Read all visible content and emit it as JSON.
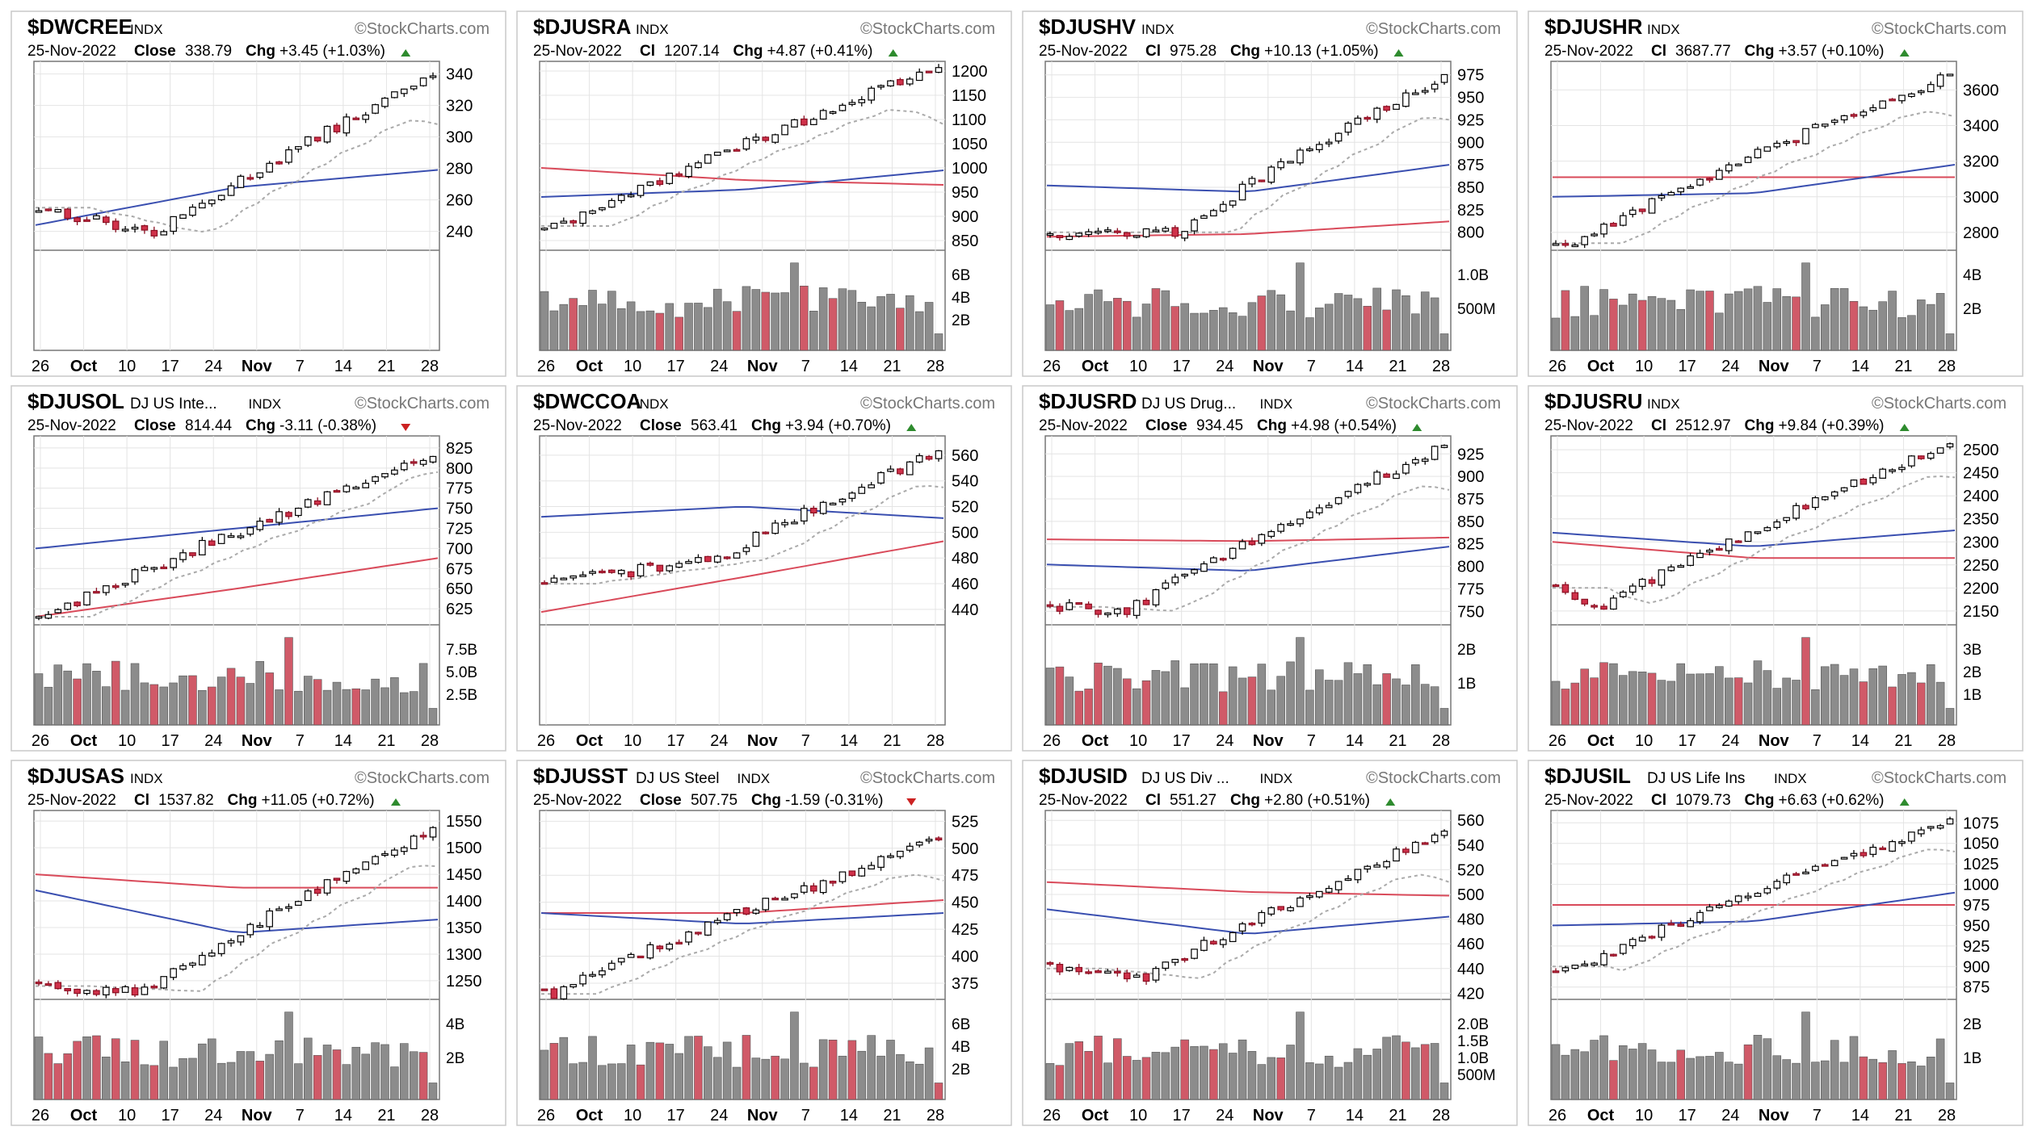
{
  "watermark": "©StockCharts.com",
  "colors": {
    "up_fill": "#ffffff",
    "up_stroke": "#000000",
    "down_fill": "#d0314a",
    "down_stroke": "#8a0f22",
    "ma_slow": "#3a4fb0",
    "ma_long": "#d94a5a",
    "ma_fast": "#aaaaaa",
    "vol_up": "#8c8c8c",
    "vol_down": "#d05a68",
    "grid": "#e4e4e4",
    "tri_up": "#2e8b2e",
    "tri_down": "#cc2222"
  },
  "charts": [
    {
      "symbol": "$DWCREE",
      "name": "",
      "type": "INDX",
      "date": "25-Nov-2022",
      "close_label": "Close",
      "close": "338.79",
      "chg_label": "Chg",
      "chg": "+3.45",
      "chg_pct": "(+1.03%)",
      "direction": "up",
      "chart_data": {
        "type": "candlestick",
        "x_ticks": [
          "26",
          "Oct",
          "10",
          "17",
          "24",
          "Nov",
          "7",
          "14",
          "21",
          "28"
        ],
        "price_ticks": [
          340,
          320,
          300,
          280,
          260,
          240
        ],
        "price_lim": [
          228,
          348
        ],
        "start": 255,
        "end": 338.79,
        "low_point": 238,
        "low_pos": 0.3,
        "ma_slow": [
          244,
          268,
          279
        ],
        "ma_long": null,
        "ma_fast_end": 308,
        "volume_ticks": [],
        "volume_max": 1,
        "volume_visible": false
      }
    },
    {
      "symbol": "$DJUSRA",
      "name": "",
      "type": "INDX",
      "date": "25-Nov-2022",
      "close_label": "Cl",
      "close": "1207.14",
      "chg_label": "Chg",
      "chg": "+4.87",
      "chg_pct": "(+0.41%)",
      "direction": "up",
      "chart_data": {
        "type": "candlestick",
        "x_ticks": [
          "26",
          "Oct",
          "10",
          "17",
          "24",
          "Nov",
          "7",
          "14",
          "21",
          "28"
        ],
        "price_ticks": [
          1200,
          1150,
          1100,
          1050,
          1000,
          950,
          900,
          850
        ],
        "price_lim": [
          830,
          1220
        ],
        "start": 880,
        "end": 1207.14,
        "low_point": 880,
        "low_pos": 0.05,
        "ma_slow": [
          940,
          955,
          995
        ],
        "ma_long": [
          1000,
          975,
          965
        ],
        "ma_fast_end": 1090,
        "volume_ticks": [
          "6B",
          "4B",
          "2B"
        ],
        "volume_max": 7.2,
        "volume_visible": true
      }
    },
    {
      "symbol": "$DJUSHV",
      "name": "",
      "type": "INDX",
      "date": "25-Nov-2022",
      "close_label": "Cl",
      "close": "975.28",
      "chg_label": "Chg",
      "chg": "+10.13",
      "chg_pct": "(+1.05%)",
      "direction": "up",
      "chart_data": {
        "type": "candlestick",
        "x_ticks": [
          "26",
          "Oct",
          "10",
          "17",
          "24",
          "Nov",
          "7",
          "14",
          "21",
          "28"
        ],
        "price_ticks": [
          975,
          950,
          925,
          900,
          875,
          850,
          825,
          800
        ],
        "price_lim": [
          780,
          990
        ],
        "start": 800,
        "end": 975.28,
        "low_point": 800,
        "low_pos": 0.33,
        "ma_slow": [
          852,
          845,
          875
        ],
        "ma_long": [
          795,
          798,
          812
        ],
        "ma_fast_end": 925,
        "volume_ticks": [
          "1.0B",
          "500M"
        ],
        "volume_max": 1.4,
        "volume_visible": true
      }
    },
    {
      "symbol": "$DJUSHR",
      "name": "",
      "type": "INDX",
      "date": "25-Nov-2022",
      "close_label": "Cl",
      "close": "3687.77",
      "chg_label": "Chg",
      "chg": "+3.57",
      "chg_pct": "(+0.10%)",
      "direction": "up",
      "chart_data": {
        "type": "candlestick",
        "x_ticks": [
          "26",
          "Oct",
          "10",
          "17",
          "24",
          "Nov",
          "7",
          "14",
          "21",
          "28"
        ],
        "price_ticks": [
          3600,
          3400,
          3200,
          3000,
          2800
        ],
        "price_lim": [
          2700,
          3760
        ],
        "start": 2740,
        "end": 3687.77,
        "low_point": 2740,
        "low_pos": 0.05,
        "ma_slow": [
          3000,
          3020,
          3180
        ],
        "ma_long": [
          3110,
          3110,
          3110
        ],
        "ma_fast_end": 3450,
        "volume_ticks": [
          "4B",
          "2B"
        ],
        "volume_max": 5.6,
        "volume_visible": true
      }
    },
    {
      "symbol": "$DJUSOL",
      "name": "DJ US Inte...",
      "type": "INDX",
      "date": "25-Nov-2022",
      "close_label": "Close",
      "close": "814.44",
      "chg_label": "Chg",
      "chg": "-3.11",
      "chg_pct": "(-0.38%)",
      "direction": "down",
      "chart_data": {
        "type": "candlestick",
        "x_ticks": [
          "26",
          "Oct",
          "10",
          "17",
          "24",
          "Nov",
          "7",
          "14",
          "21",
          "28"
        ],
        "price_ticks": [
          825,
          800,
          775,
          750,
          725,
          700,
          675,
          650,
          625
        ],
        "price_lim": [
          605,
          840
        ],
        "start": 615,
        "end": 814.44,
        "low_point": 615,
        "low_pos": 0.02,
        "ma_slow": [
          700,
          725,
          750
        ],
        "ma_long": [
          615,
          650,
          688
        ],
        "ma_fast_end": 795,
        "volume_ticks": [
          "7.5B",
          "5.0B",
          "2.5B"
        ],
        "volume_max": 8.2,
        "volume_visible": true
      }
    },
    {
      "symbol": "$DWCCOA",
      "name": "",
      "type": "INDX",
      "date": "25-Nov-2022",
      "close_label": "Close",
      "close": "563.41",
      "chg_label": "Chg",
      "chg": "+3.94",
      "chg_pct": "(+0.70%)",
      "direction": "up",
      "chart_data": {
        "type": "candlestick",
        "x_ticks": [
          "26",
          "Oct",
          "10",
          "17",
          "24",
          "Nov",
          "7",
          "14",
          "21",
          "28"
        ],
        "price_ticks": [
          560,
          540,
          520,
          500,
          480,
          460,
          440
        ],
        "price_lim": [
          428,
          575
        ],
        "start": 460,
        "end": 563.41,
        "low_point": 480,
        "low_pos": 0.45,
        "ma_slow": [
          512,
          520,
          511
        ],
        "ma_long": [
          438,
          465,
          493
        ],
        "ma_fast_end": 535,
        "volume_ticks": [],
        "volume_max": 1,
        "volume_visible": false
      }
    },
    {
      "symbol": "$DJUSRD",
      "name": "DJ US Drug...",
      "type": "INDX",
      "date": "25-Nov-2022",
      "close_label": "Close",
      "close": "934.45",
      "chg_label": "Chg",
      "chg": "+4.98",
      "chg_pct": "(+0.54%)",
      "direction": "up",
      "chart_data": {
        "type": "candlestick",
        "x_ticks": [
          "26",
          "Oct",
          "10",
          "17",
          "24",
          "Nov",
          "7",
          "14",
          "21",
          "28"
        ],
        "price_ticks": [
          925,
          900,
          875,
          850,
          825,
          800,
          775,
          750
        ],
        "price_lim": [
          735,
          945
        ],
        "start": 755,
        "end": 934.45,
        "low_point": 750,
        "low_pos": 0.2,
        "ma_slow": [
          802,
          795,
          822
        ],
        "ma_long": [
          830,
          828,
          832
        ],
        "ma_fast_end": 885,
        "volume_ticks": [
          "2B",
          "1B"
        ],
        "volume_max": 2.8,
        "volume_visible": true
      }
    },
    {
      "symbol": "$DJUSRU",
      "name": "",
      "type": "INDX",
      "date": "25-Nov-2022",
      "close_label": "Cl",
      "close": "2512.97",
      "chg_label": "Chg",
      "chg": "+9.84",
      "chg_pct": "(+0.39%)",
      "direction": "up",
      "chart_data": {
        "type": "candlestick",
        "x_ticks": [
          "26",
          "Oct",
          "10",
          "17",
          "24",
          "Nov",
          "7",
          "14",
          "21",
          "28"
        ],
        "price_ticks": [
          2500,
          2450,
          2400,
          2350,
          2300,
          2250,
          2200,
          2150
        ],
        "price_lim": [
          2120,
          2530
        ],
        "start": 2200,
        "end": 2512.97,
        "low_point": 2160,
        "low_pos": 0.12,
        "ma_slow": [
          2320,
          2290,
          2325
        ],
        "ma_long": [
          2300,
          2265,
          2265
        ],
        "ma_fast_end": 2440,
        "volume_ticks": [
          "3B",
          "2B",
          "1B"
        ],
        "volume_max": 3.8,
        "volume_visible": true
      }
    },
    {
      "symbol": "$DJUSAS",
      "name": "",
      "type": "INDX",
      "date": "25-Nov-2022",
      "close_label": "Cl",
      "close": "1537.82",
      "chg_label": "Chg",
      "chg": "+11.05",
      "chg_pct": "(+0.72%)",
      "direction": "up",
      "chart_data": {
        "type": "candlestick",
        "x_ticks": [
          "26",
          "Oct",
          "10",
          "17",
          "24",
          "Nov",
          "7",
          "14",
          "21",
          "28"
        ],
        "price_ticks": [
          1550,
          1500,
          1450,
          1400,
          1350,
          1300,
          1250
        ],
        "price_lim": [
          1215,
          1570
        ],
        "start": 1240,
        "end": 1537.82,
        "low_point": 1230,
        "low_pos": 0.28,
        "ma_slow": [
          1420,
          1340,
          1365
        ],
        "ma_long": [
          1450,
          1425,
          1425
        ],
        "ma_fast_end": 1465,
        "volume_ticks": [
          "4B",
          "2B"
        ],
        "volume_max": 5.2,
        "volume_visible": true
      }
    },
    {
      "symbol": "$DJUSST",
      "name": "DJ US Steel",
      "type": "INDX",
      "date": "25-Nov-2022",
      "close_label": "Close",
      "close": "507.75",
      "chg_label": "Chg",
      "chg": "-1.59",
      "chg_pct": "(-0.31%)",
      "direction": "down",
      "chart_data": {
        "type": "candlestick",
        "x_ticks": [
          "26",
          "Oct",
          "10",
          "17",
          "24",
          "Nov",
          "7",
          "14",
          "21",
          "28"
        ],
        "price_ticks": [
          525,
          500,
          475,
          450,
          425,
          400,
          375
        ],
        "price_lim": [
          360,
          535
        ],
        "start": 365,
        "end": 507.75,
        "low_point": 365,
        "low_pos": 0.02,
        "ma_slow": [
          440,
          430,
          440
        ],
        "ma_long": [
          440,
          440,
          452
        ],
        "ma_fast_end": 470,
        "volume_ticks": [
          "6B",
          "4B",
          "2B"
        ],
        "volume_max": 7.2,
        "volume_visible": true
      }
    },
    {
      "symbol": "$DJUSID",
      "name": "DJ US Div ...",
      "type": "INDX",
      "date": "25-Nov-2022",
      "close_label": "Cl",
      "close": "551.27",
      "chg_label": "Chg",
      "chg": "+2.80",
      "chg_pct": "(+0.51%)",
      "direction": "up",
      "chart_data": {
        "type": "candlestick",
        "x_ticks": [
          "26",
          "Oct",
          "10",
          "17",
          "24",
          "Nov",
          "7",
          "14",
          "21",
          "28"
        ],
        "price_ticks": [
          560,
          540,
          520,
          500,
          480,
          460,
          440,
          420
        ],
        "price_lim": [
          415,
          568
        ],
        "start": 440,
        "end": 551.27,
        "low_point": 432,
        "low_pos": 0.25,
        "ma_slow": [
          488,
          468,
          482
        ],
        "ma_long": [
          510,
          502,
          499
        ],
        "ma_fast_end": 510,
        "volume_ticks": [
          "2.0B",
          "1.5B",
          "1.0B",
          "500M"
        ],
        "volume_max": 2.1,
        "volume_visible": true
      }
    },
    {
      "symbol": "$DJUSIL",
      "name": "DJ US Life Ins",
      "type": "INDX",
      "date": "25-Nov-2022",
      "close_label": "Cl",
      "close": "1079.73",
      "chg_label": "Chg",
      "chg": "+6.63",
      "chg_pct": "(+0.62%)",
      "direction": "up",
      "chart_data": {
        "type": "candlestick",
        "x_ticks": [
          "26",
          "Oct",
          "10",
          "17",
          "24",
          "Nov",
          "7",
          "14",
          "21",
          "28"
        ],
        "price_ticks": [
          1075,
          1050,
          1025,
          1000,
          975,
          950,
          925,
          900,
          875
        ],
        "price_lim": [
          860,
          1090
        ],
        "start": 900,
        "end": 1079.73,
        "low_point": 895,
        "low_pos": 0.05,
        "ma_slow": [
          950,
          955,
          990
        ],
        "ma_long": [
          975,
          975,
          975
        ],
        "ma_fast_end": 1040,
        "volume_ticks": [
          "2B",
          "1B"
        ],
        "volume_max": 2.8,
        "volume_visible": true
      }
    }
  ]
}
